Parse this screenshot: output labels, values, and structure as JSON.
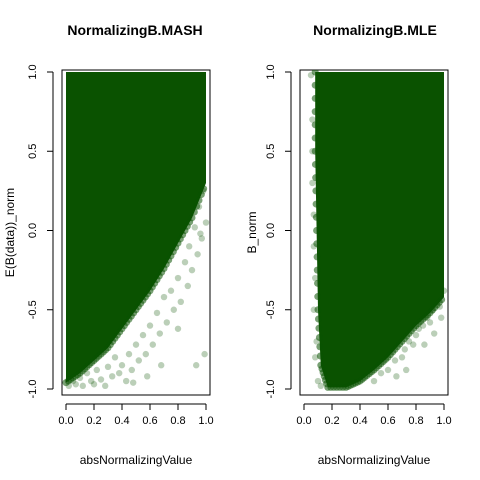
{
  "chart_data": [
    {
      "type": "scatter",
      "title": "NormalizingB.MASH",
      "xlabel": "absNormalizingValue",
      "ylabel": "E(B(data))_norm",
      "xlim": [
        0.0,
        1.0
      ],
      "ylim": [
        -1.0,
        1.0
      ],
      "x_ticks": [
        "0.0",
        "0.2",
        "0.4",
        "0.6",
        "0.8",
        "1.0"
      ],
      "y_ticks": [
        "-1.0",
        "-0.5",
        "0.0",
        "0.5",
        "1.0"
      ],
      "point_color": "#0a5200",
      "point_alpha": 0.18,
      "dense_region_boundary": [
        [
          0.0,
          -0.96
        ],
        [
          0.1,
          -0.9
        ],
        [
          0.2,
          -0.82
        ],
        [
          0.3,
          -0.74
        ],
        [
          0.4,
          -0.62
        ],
        [
          0.5,
          -0.5
        ],
        [
          0.6,
          -0.38
        ],
        [
          0.7,
          -0.24
        ],
        [
          0.8,
          -0.08
        ],
        [
          0.9,
          0.08
        ],
        [
          1.0,
          0.3
        ]
      ],
      "sparse_points": [
        [
          0.02,
          -0.98
        ],
        [
          0.05,
          -0.95
        ],
        [
          0.07,
          -0.97
        ],
        [
          0.1,
          -0.93
        ],
        [
          0.12,
          -0.98
        ],
        [
          0.15,
          -0.9
        ],
        [
          0.18,
          -0.95
        ],
        [
          0.2,
          -0.97
        ],
        [
          0.22,
          -0.88
        ],
        [
          0.25,
          -0.94
        ],
        [
          0.28,
          -0.98
        ],
        [
          0.3,
          -0.86
        ],
        [
          0.33,
          -0.92
        ],
        [
          0.35,
          -0.8
        ],
        [
          0.38,
          -0.9
        ],
        [
          0.4,
          -0.85
        ],
        [
          0.43,
          -0.95
        ],
        [
          0.45,
          -0.78
        ],
        [
          0.47,
          -0.88
        ],
        [
          0.5,
          -0.72
        ],
        [
          0.52,
          -0.82
        ],
        [
          0.55,
          -0.66
        ],
        [
          0.57,
          -0.78
        ],
        [
          0.6,
          -0.6
        ],
        [
          0.62,
          -0.72
        ],
        [
          0.65,
          -0.52
        ],
        [
          0.67,
          -0.65
        ],
        [
          0.7,
          -0.42
        ],
        [
          0.72,
          -0.58
        ],
        [
          0.75,
          -0.38
        ],
        [
          0.77,
          -0.5
        ],
        [
          0.8,
          -0.3
        ],
        [
          0.82,
          -0.45
        ],
        [
          0.85,
          -0.2
        ],
        [
          0.87,
          -0.35
        ],
        [
          0.88,
          -0.1
        ],
        [
          0.9,
          -0.25
        ],
        [
          0.92,
          0.02
        ],
        [
          0.94,
          -0.15
        ],
        [
          0.95,
          0.15
        ],
        [
          0.97,
          -0.05
        ],
        [
          0.98,
          0.25
        ],
        [
          1.0,
          0.05
        ],
        [
          0.96,
          -0.02
        ],
        [
          0.99,
          -0.78
        ],
        [
          0.93,
          -0.85
        ],
        [
          0.8,
          -0.62
        ],
        [
          0.68,
          -0.85
        ],
        [
          0.58,
          -0.92
        ],
        [
          0.48,
          -0.96
        ]
      ]
    },
    {
      "type": "scatter",
      "title": "NormalizingB.MLE",
      "xlabel": "absNormalizingValue",
      "ylabel": "B_norm",
      "xlim": [
        0.0,
        1.0
      ],
      "ylim": [
        -1.0,
        1.0
      ],
      "x_ticks": [
        "0.0",
        "0.2",
        "0.4",
        "0.6",
        "0.8",
        "1.0"
      ],
      "y_ticks": [
        "-1.0",
        "-0.5",
        "0.0",
        "0.5",
        "1.0"
      ],
      "point_color": "#0a5200",
      "point_alpha": 0.18,
      "dense_region_boundary": [
        [
          0.08,
          1.0
        ],
        [
          0.08,
          0.5
        ],
        [
          0.09,
          0.0
        ],
        [
          0.1,
          -0.5
        ],
        [
          0.12,
          -0.85
        ],
        [
          0.17,
          -0.99
        ],
        [
          0.3,
          -0.99
        ],
        [
          0.4,
          -0.95
        ],
        [
          0.5,
          -0.88
        ],
        [
          0.6,
          -0.8
        ],
        [
          0.7,
          -0.7
        ],
        [
          0.8,
          -0.6
        ],
        [
          0.9,
          -0.52
        ],
        [
          1.0,
          -0.42
        ]
      ],
      "sparse_points": [
        [
          0.05,
          0.98
        ],
        [
          0.06,
          0.7
        ],
        [
          0.06,
          0.3
        ],
        [
          0.07,
          -0.1
        ],
        [
          0.07,
          -0.5
        ],
        [
          0.08,
          -0.8
        ],
        [
          0.1,
          -0.95
        ],
        [
          0.12,
          -0.98
        ],
        [
          0.06,
          0.5
        ],
        [
          0.07,
          0.1
        ],
        [
          0.08,
          -0.3
        ],
        [
          0.09,
          -0.7
        ],
        [
          0.5,
          -0.95
        ],
        [
          0.55,
          -0.9
        ],
        [
          0.6,
          -0.88
        ],
        [
          0.65,
          -0.82
        ],
        [
          0.7,
          -0.8
        ],
        [
          0.72,
          -0.75
        ],
        [
          0.75,
          -0.7
        ],
        [
          0.78,
          -0.72
        ],
        [
          0.8,
          -0.66
        ],
        [
          0.82,
          -0.62
        ],
        [
          0.85,
          -0.6
        ],
        [
          0.88,
          -0.55
        ],
        [
          0.9,
          -0.58
        ],
        [
          0.92,
          -0.5
        ],
        [
          0.95,
          -0.45
        ],
        [
          0.97,
          -0.48
        ],
        [
          1.0,
          -0.38
        ],
        [
          0.98,
          -0.55
        ],
        [
          0.66,
          -0.92
        ],
        [
          0.73,
          -0.88
        ],
        [
          0.86,
          -0.72
        ],
        [
          0.93,
          -0.65
        ]
      ]
    }
  ]
}
